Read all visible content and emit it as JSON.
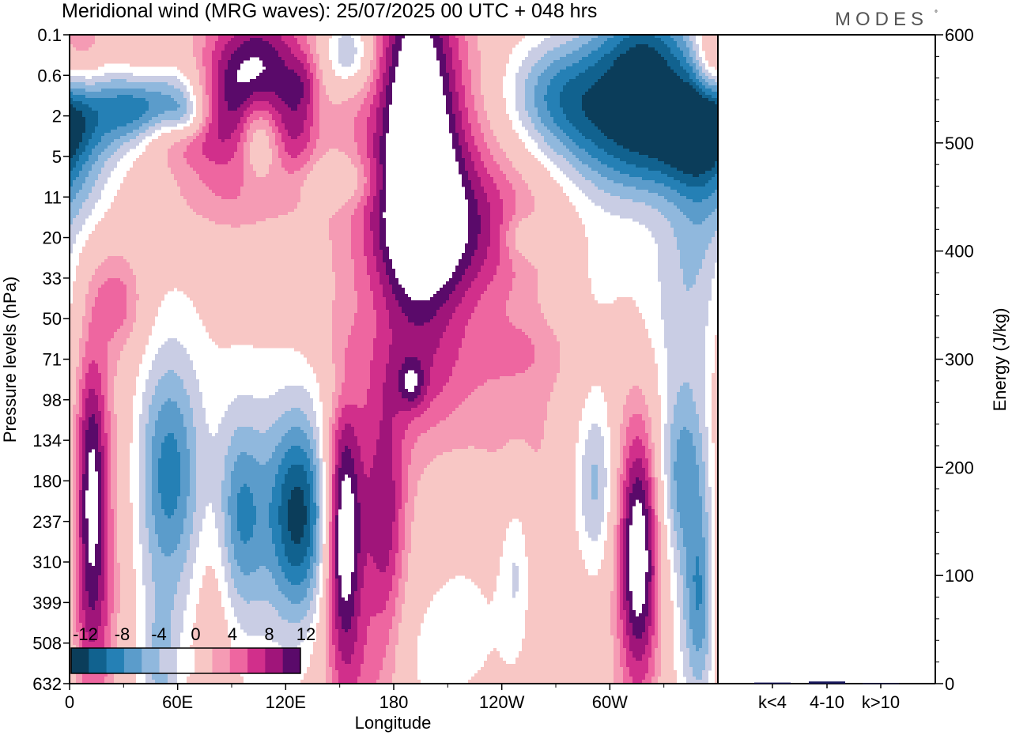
{
  "chart_data": [
    {
      "type": "heatmap",
      "title": "Meridional wind (MRG waves):  25/07/2025  00 UTC  + 048 hrs",
      "brand": "MODES",
      "brand_mark": "°",
      "xlabel": "Longitude",
      "ylabel": "Pressure levels (hPa)",
      "x_ticks": [
        "0",
        "60E",
        "120E",
        "180",
        "120W",
        "60W"
      ],
      "x_tick_values": [
        0,
        60,
        120,
        180,
        240,
        300
      ],
      "xlim": [
        0,
        360
      ],
      "y_ticks": [
        "0.1",
        "0.6",
        "2",
        "5",
        "11",
        "20",
        "33",
        "50",
        "71",
        "98",
        "134",
        "180",
        "237",
        "310",
        "399",
        "508",
        "632"
      ],
      "colorbar": {
        "levels": [
          -14,
          -12,
          -10,
          -8,
          -6,
          -4,
          -2,
          2,
          4,
          6,
          8,
          10,
          12,
          14
        ],
        "labels": [
          "-12",
          "-8",
          "-4",
          "0",
          "4",
          "8",
          "12"
        ],
        "colors": [
          "#0b3d5a",
          "#11628f",
          "#2580b5",
          "#5b9ccb",
          "#90b8dd",
          "#c9cde4",
          "#ffffff",
          "#f8c7c5",
          "#f59bb4",
          "#ee66a0",
          "#d12f8b",
          "#a0157a",
          "#5a0a6a"
        ]
      },
      "blobs": [
        {
          "lon": 193,
          "lev": 2.0,
          "w": 16,
          "h": 3.5,
          "v": 13
        },
        {
          "lon": 196,
          "lev": 3.8,
          "w": 28,
          "h": 2.6,
          "v": 6
        },
        {
          "lon": 205,
          "lev": 5.0,
          "w": 25,
          "h": 1.2,
          "v": 4
        },
        {
          "lon": 105,
          "lev": 1.0,
          "w": 20,
          "h": 1.3,
          "v": 12
        },
        {
          "lon": 85,
          "lev": 2.0,
          "w": 20,
          "h": 1.2,
          "v": 4
        },
        {
          "lon": 8,
          "lev": 0.6,
          "w": 10,
          "h": 0.8,
          "v": 6
        },
        {
          "lon": 127,
          "lev": 2.5,
          "w": 8,
          "h": 0.8,
          "v": 4
        },
        {
          "lon": 90,
          "lev": 4.0,
          "w": 30,
          "h": 0.8,
          "v": 3
        },
        {
          "lon": 235,
          "lev": 4.5,
          "w": 30,
          "h": 1.3,
          "v": 3
        },
        {
          "lon": 252,
          "lev": 5.0,
          "w": 8,
          "h": 0.4,
          "v": -4
        },
        {
          "lon": 355,
          "lev": 0.8,
          "w": 6,
          "h": 0.8,
          "v": 4
        },
        {
          "lon": 40,
          "lev": 1.0,
          "w": 12,
          "h": 0.8,
          "v": 3
        },
        {
          "lon": 130,
          "lev": 1.2,
          "w": 6,
          "h": 0.5,
          "v": 3
        },
        {
          "lon": 60,
          "lev": 2.6,
          "w": 18,
          "h": 0.5,
          "v": 3
        },
        {
          "lon": 155,
          "lev": 1.5,
          "w": 8,
          "h": 0.6,
          "v": 3
        },
        {
          "lon": 320,
          "lev": 0.7,
          "w": 20,
          "h": 1.2,
          "v": -13
        },
        {
          "lon": 12,
          "lev": 1.8,
          "w": 20,
          "h": 0.9,
          "v": -10
        },
        {
          "lon": 40,
          "lev": 1.8,
          "w": 12,
          "h": 0.6,
          "v": -8
        },
        {
          "lon": 60,
          "lev": 1.4,
          "w": 12,
          "h": 0.6,
          "v": -6
        },
        {
          "lon": 155,
          "lev": 0.6,
          "w": 10,
          "h": 0.8,
          "v": -8
        },
        {
          "lon": 268,
          "lev": 1.5,
          "w": 20,
          "h": 1.0,
          "v": -8
        },
        {
          "lon": 290,
          "lev": 1.6,
          "w": 18,
          "h": 1.2,
          "v": -4
        },
        {
          "lon": 325,
          "lev": 2.8,
          "w": 30,
          "h": 0.9,
          "v": -8
        },
        {
          "lon": 350,
          "lev": 2.2,
          "w": 12,
          "h": 0.8,
          "v": -6
        },
        {
          "lon": 105,
          "lev": 2.4,
          "w": 8,
          "h": 0.8,
          "v": -8
        },
        {
          "lon": 65,
          "lev": 2.0,
          "w": 8,
          "h": 0.4,
          "v": -6
        },
        {
          "lon": 10,
          "lev": 4.0,
          "w": 12,
          "h": 0.8,
          "v": -3
        },
        {
          "lon": 350,
          "lev": 4.2,
          "w": 12,
          "h": 1.5,
          "v": -4
        },
        {
          "lon": 150,
          "lev": 3.6,
          "w": 15,
          "h": 0.4,
          "v": -4
        },
        {
          "lon": 340,
          "lev": 6.8,
          "w": 22,
          "h": 1.5,
          "v": -3
        },
        {
          "lon": 320,
          "lev": 3.0,
          "w": 35,
          "h": 1.8,
          "v": -3
        },
        {
          "lon": 25,
          "lev": 6.5,
          "w": 10,
          "h": 0.8,
          "v": 3
        },
        {
          "lon": 12,
          "lev": 10.8,
          "w": 6,
          "h": 2.2,
          "v": 9
        },
        {
          "lon": 15,
          "lev": 10.5,
          "w": 14,
          "h": 3.8,
          "v": 4
        },
        {
          "lon": 55,
          "lev": 10.8,
          "w": 12,
          "h": 2.0,
          "v": -8
        },
        {
          "lon": 55,
          "lev": 11.0,
          "w": 22,
          "h": 4.0,
          "v": -3
        },
        {
          "lon": 95,
          "lev": 11.8,
          "w": 9,
          "h": 1.6,
          "v": -6
        },
        {
          "lon": 95,
          "lev": 12.0,
          "w": 16,
          "h": 3.0,
          "v": -3
        },
        {
          "lon": 128,
          "lev": 11.8,
          "w": 12,
          "h": 1.7,
          "v": -11
        },
        {
          "lon": 128,
          "lev": 12.0,
          "w": 20,
          "h": 3.0,
          "v": -4
        },
        {
          "lon": 152,
          "lev": 12.3,
          "w": 7,
          "h": 2.2,
          "v": 13
        },
        {
          "lon": 152,
          "lev": 12.8,
          "w": 12,
          "h": 4.0,
          "v": 4
        },
        {
          "lon": 175,
          "lev": 12.0,
          "w": 8,
          "h": 2.0,
          "v": 7
        },
        {
          "lon": 175,
          "lev": 12.3,
          "w": 14,
          "h": 3.0,
          "v": 3
        },
        {
          "lon": 190,
          "lev": 8.5,
          "w": 25,
          "h": 1.0,
          "v": 3
        },
        {
          "lon": 190,
          "lev": 8.6,
          "w": 5,
          "h": 0.4,
          "v": 5
        },
        {
          "lon": 255,
          "lev": 10.0,
          "w": 40,
          "h": 3.5,
          "v": 3
        },
        {
          "lon": 255,
          "lev": 7.8,
          "w": 20,
          "h": 0.6,
          "v": 2
        },
        {
          "lon": 248,
          "lev": 13.0,
          "w": 6,
          "h": 1.5,
          "v": -4
        },
        {
          "lon": 200,
          "lev": 13.5,
          "w": 35,
          "h": 2.0,
          "v": -2
        },
        {
          "lon": 292,
          "lev": 11.0,
          "w": 8,
          "h": 1.5,
          "v": -6
        },
        {
          "lon": 295,
          "lev": 11.5,
          "w": 20,
          "h": 3.5,
          "v": -3
        },
        {
          "lon": 316,
          "lev": 12.8,
          "w": 8,
          "h": 2.2,
          "v": 13
        },
        {
          "lon": 316,
          "lev": 12.8,
          "w": 14,
          "h": 4.0,
          "v": 4
        },
        {
          "lon": 340,
          "lev": 10.8,
          "w": 10,
          "h": 1.5,
          "v": -6
        },
        {
          "lon": 338,
          "lev": 11.0,
          "w": 18,
          "h": 4.0,
          "v": -3
        },
        {
          "lon": 350,
          "lev": 14.0,
          "w": 6,
          "h": 1.5,
          "v": -6
        },
        {
          "lon": 350,
          "lev": 14.5,
          "w": 12,
          "h": 4.0,
          "v": -3
        },
        {
          "lon": 12,
          "lev": 14.3,
          "w": 9,
          "h": 2.0,
          "v": 6
        },
        {
          "lon": 80,
          "lev": 14.0,
          "w": 8,
          "h": 2.5,
          "v": 3
        },
        {
          "lon": 50,
          "lev": 15.8,
          "w": 8,
          "h": 1.5,
          "v": -5
        },
        {
          "lon": 195,
          "lev": 15.5,
          "w": 12,
          "h": 1.0,
          "v": -2
        },
        {
          "lon": 230,
          "lev": 14.5,
          "w": 20,
          "h": 2.5,
          "v": -2
        },
        {
          "lon": 275,
          "lev": 15.0,
          "w": 10,
          "h": 1.5,
          "v": 2
        },
        {
          "lon": 165,
          "lev": 15.8,
          "w": 14,
          "h": 1.2,
          "v": 2
        },
        {
          "lon": 32,
          "lev": 6.7,
          "w": 10,
          "h": 0.9,
          "v": 2
        },
        {
          "lon": 150,
          "lev": 8.7,
          "w": 10,
          "h": 0.6,
          "v": -2
        },
        {
          "lon": 288,
          "lev": 6.0,
          "w": 20,
          "h": 1.5,
          "v": -2
        }
      ]
    },
    {
      "type": "bar",
      "ylabel": "Energy (J/kg)",
      "ylim": [
        0,
        600
      ],
      "y_ticks": [
        "0",
        "100",
        "200",
        "300",
        "400",
        "500",
        "600"
      ],
      "categories": [
        "k<4",
        "4-10",
        "k>10"
      ],
      "values": [
        1,
        2,
        0.5
      ],
      "bar_color": "#1a1a5e"
    }
  ]
}
